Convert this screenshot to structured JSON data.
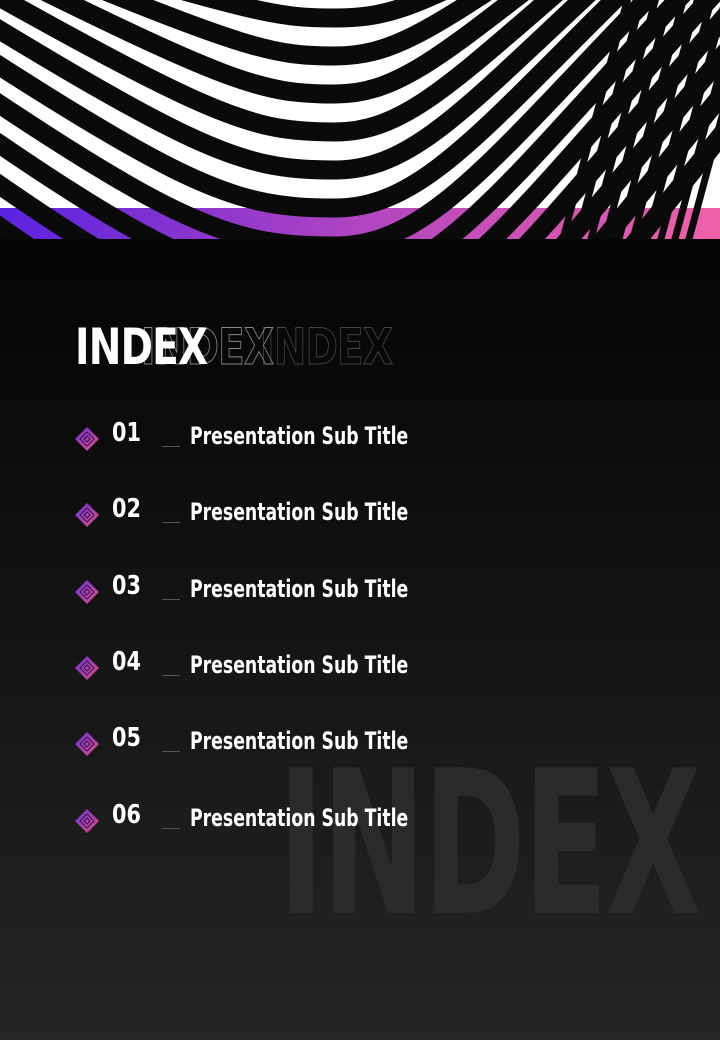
{
  "title": "INDEX",
  "watermark": "INDEX",
  "colors": {
    "gradient_start": "#5a22e0",
    "gradient_mid": "#b046c0",
    "gradient_end": "#f060a8"
  },
  "items": [
    {
      "number": "01",
      "label": "Presentation Sub Title",
      "icon": "diamond-icon"
    },
    {
      "number": "02",
      "label": "Presentation Sub Title",
      "icon": "diamond-icon"
    },
    {
      "number": "03",
      "label": "Presentation Sub Title",
      "icon": "diamond-icon"
    },
    {
      "number": "04",
      "label": "Presentation Sub Title",
      "icon": "diamond-icon"
    },
    {
      "number": "05",
      "label": "Presentation Sub Title",
      "icon": "diamond-icon"
    },
    {
      "number": "06",
      "label": "Presentation Sub Title",
      "icon": "diamond-icon"
    }
  ]
}
